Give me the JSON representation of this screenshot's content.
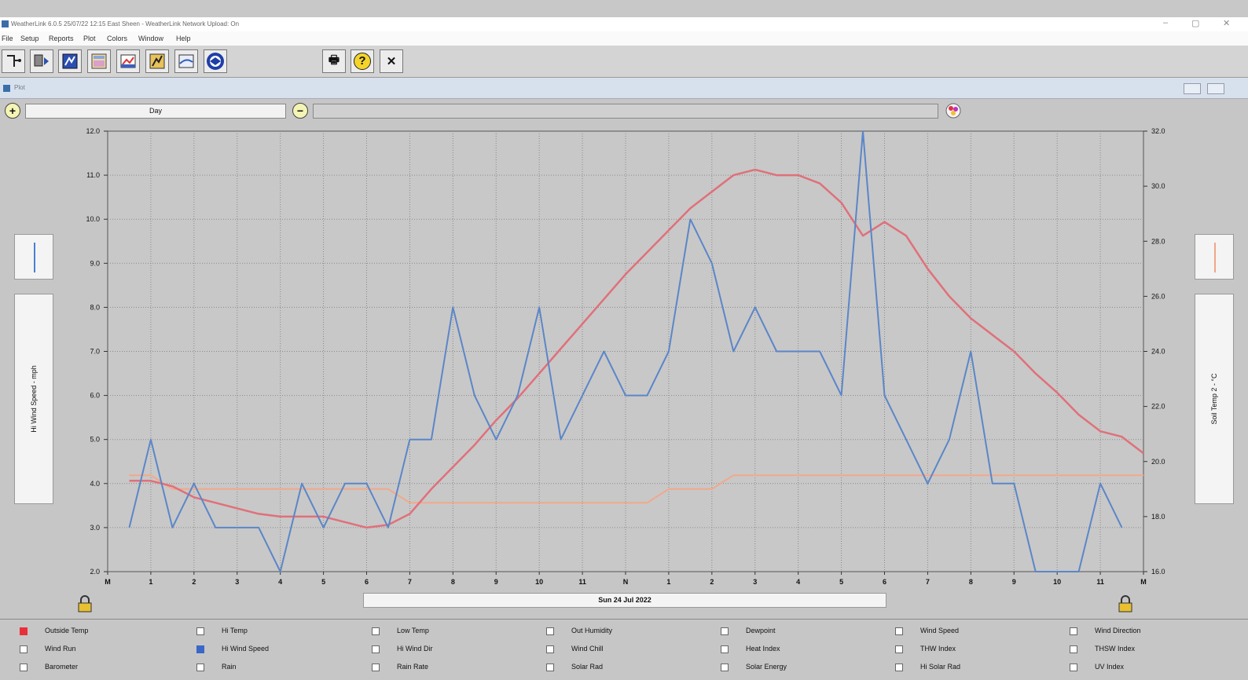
{
  "window": {
    "title": "WeatherLink 6.0.5  25/07/22  12:15  East Sheen - WeatherLink Network Upload: On",
    "controls": [
      "–",
      "▢",
      "✕"
    ]
  },
  "menu": [
    "File",
    "Setup",
    "Reports",
    "Plot",
    "Colors",
    "Window",
    "Help"
  ],
  "toolbar": {
    "right_buttons": [
      "🖶",
      "?",
      "✕"
    ]
  },
  "subwindow": {
    "title": "Plot"
  },
  "plot_controls": {
    "range": "Day",
    "zoom_in_icon": "zoom-in",
    "zoom_out_icon": "zoom-out"
  },
  "date_label": "Sun 24 Jul 2022",
  "left_axis": {
    "label": "Hi Wind Speed - mph",
    "color": "#4a7fd1"
  },
  "right_axis": {
    "label": "Soil Temp 2 - °C",
    "color": "#f0a58a"
  },
  "chart_data": {
    "type": "line",
    "x_ticks": [
      "M",
      "1",
      "2",
      "3",
      "4",
      "5",
      "6",
      "7",
      "8",
      "9",
      "10",
      "11",
      "N",
      "1",
      "2",
      "3",
      "4",
      "5",
      "6",
      "7",
      "8",
      "9",
      "10",
      "11",
      "M"
    ],
    "y_left": {
      "range": [
        2.0,
        12.0
      ],
      "ticks": [
        "2.0",
        "3.0",
        "4.0",
        "5.0",
        "6.0",
        "7.0",
        "8.0",
        "9.0",
        "10.0",
        "11.0",
        "12.0"
      ]
    },
    "y_right": {
      "range": [
        16.0,
        32.0
      ],
      "ticks": [
        "16.0",
        "18.0",
        "20.0",
        "22.0",
        "24.0",
        "26.0",
        "28.0",
        "30.0",
        "32.0"
      ]
    },
    "grid": true,
    "series": [
      {
        "name": "Hi Wind Speed",
        "axis": "left",
        "color": "#5b86c8",
        "x": [
          0.5,
          1,
          1.5,
          2,
          2.5,
          3,
          3.5,
          4,
          4.5,
          5,
          5.5,
          6,
          6.5,
          7,
          7.5,
          8,
          8.5,
          9,
          9.5,
          10,
          10.5,
          11,
          11.5,
          12,
          12.5,
          13,
          13.5,
          14,
          14.5,
          15,
          15.5,
          16,
          16.5,
          17,
          17.5,
          18,
          18.5,
          19,
          19.5,
          20,
          20.5,
          21,
          21.5,
          22,
          22.5,
          23,
          23.5
        ],
        "y": [
          3,
          5,
          3,
          4,
          3,
          3,
          3,
          2,
          4,
          3,
          4,
          4,
          3,
          5,
          5,
          8,
          6,
          5,
          6,
          8,
          5,
          6,
          7,
          6,
          6,
          7,
          10,
          9,
          7,
          8,
          7,
          7,
          7,
          6,
          12,
          6,
          5,
          4,
          5,
          7,
          4,
          4,
          2,
          2,
          2,
          4,
          3
        ]
      },
      {
        "name": "Outside Temp",
        "axis": "right",
        "color": "#e0707a",
        "x": [
          0.5,
          1,
          1.5,
          2,
          2.5,
          3,
          3.5,
          4,
          4.5,
          5,
          5.5,
          6,
          6.5,
          7,
          7.5,
          8,
          8.5,
          9,
          9.5,
          10,
          10.5,
          11,
          11.5,
          12,
          12.5,
          13,
          13.5,
          14,
          14.5,
          15,
          15.5,
          16,
          16.5,
          17,
          17.5,
          18,
          18.5,
          19,
          19.5,
          20,
          20.5,
          21,
          21.5,
          22,
          22.5,
          23,
          23.5,
          24
        ],
        "y": [
          19.3,
          19.3,
          19.1,
          18.7,
          18.5,
          18.3,
          18.1,
          18.0,
          18.0,
          18.0,
          17.8,
          17.6,
          17.7,
          18.1,
          19.0,
          19.8,
          20.6,
          21.5,
          22.3,
          23.2,
          24.1,
          25.0,
          25.9,
          26.8,
          27.6,
          28.4,
          29.2,
          29.8,
          30.4,
          30.6,
          30.4,
          30.4,
          30.1,
          29.4,
          28.2,
          28.7,
          28.2,
          27.0,
          26.0,
          25.2,
          24.6,
          24.0,
          23.2,
          22.5,
          21.7,
          21.1,
          20.9,
          20.3
        ]
      },
      {
        "name": "Soil Temp 2",
        "axis": "right",
        "color": "#f2a88a",
        "x": [
          0.5,
          1,
          1.5,
          2,
          2.5,
          3,
          3.5,
          4,
          4.5,
          5,
          5.5,
          6,
          6.5,
          7,
          7.5,
          8,
          8.5,
          9,
          9.5,
          10,
          10.5,
          11,
          11.5,
          12,
          12.5,
          13,
          13.5,
          14,
          14.5,
          15,
          15.5,
          16,
          16.5,
          17,
          17.5,
          18,
          18.5,
          19,
          19.5,
          20,
          20.5,
          21,
          21.5,
          22,
          22.5,
          23,
          23.5,
          24
        ],
        "y": [
          19.5,
          19.5,
          19.0,
          19.0,
          19.0,
          19.0,
          19.0,
          19.0,
          19.0,
          19.0,
          19.0,
          19.0,
          19.0,
          18.5,
          18.5,
          18.5,
          18.5,
          18.5,
          18.5,
          18.5,
          18.5,
          18.5,
          18.5,
          18.5,
          18.5,
          19.0,
          19.0,
          19.0,
          19.5,
          19.5,
          19.5,
          19.5,
          19.5,
          19.5,
          19.5,
          19.5,
          19.5,
          19.5,
          19.5,
          19.5,
          19.5,
          19.5,
          19.5,
          19.5,
          19.5,
          19.5,
          19.5,
          19.5
        ]
      }
    ]
  },
  "legend": {
    "rows": [
      [
        {
          "label": "Outside Temp",
          "checked": true,
          "color": "#e8303a"
        },
        {
          "label": "Hi Temp",
          "checked": false
        },
        {
          "label": "Low Temp",
          "checked": false
        },
        {
          "label": "Out Humidity",
          "checked": false
        },
        {
          "label": "Dewpoint",
          "checked": false
        },
        {
          "label": "Wind Speed",
          "checked": false
        },
        {
          "label": "Wind Direction",
          "checked": false
        }
      ],
      [
        {
          "label": "Wind Run",
          "checked": false
        },
        {
          "label": "Hi Wind Speed",
          "checked": true,
          "color": "#3a68c8"
        },
        {
          "label": "Hi Wind Dir",
          "checked": false
        },
        {
          "label": "Wind Chill",
          "checked": false
        },
        {
          "label": "Heat Index",
          "checked": false
        },
        {
          "label": "THW Index",
          "checked": false
        },
        {
          "label": "THSW Index",
          "checked": false
        }
      ],
      [
        {
          "label": "Barometer",
          "checked": false
        },
        {
          "label": "Rain",
          "checked": false
        },
        {
          "label": "Rain Rate",
          "checked": false
        },
        {
          "label": "Solar Rad",
          "checked": false
        },
        {
          "label": "Solar Energy",
          "checked": false
        },
        {
          "label": "Hi Solar Rad",
          "checked": false
        },
        {
          "label": "UV Index",
          "checked": false
        }
      ]
    ]
  }
}
